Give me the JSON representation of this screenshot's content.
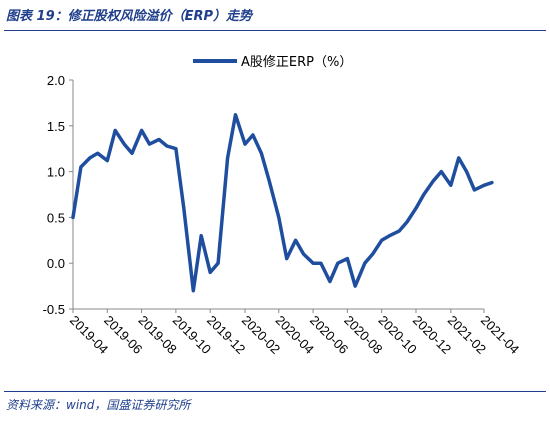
{
  "header": {
    "title": "图表 19：修正股权风险溢价（ERP）走势"
  },
  "footer": {
    "source": "资料来源：wind，国盛证券研究所"
  },
  "colors": {
    "accent": "#1f3f8c",
    "series": "#1f4e9e"
  },
  "chart_data": {
    "type": "line",
    "title": "",
    "xlabel": "",
    "ylabel": "",
    "ylim": [
      -0.5,
      2.0
    ],
    "y_ticks": [
      2.0,
      1.5,
      1.0,
      0.5,
      0.0,
      -0.5
    ],
    "y_tick_labels": [
      "2.0",
      "1.5",
      "1.0",
      "0.5",
      "0.0",
      "-0.5"
    ],
    "x_tick_labels": [
      "2019-04",
      "2019-06",
      "2019-08",
      "2019-10",
      "2019-12",
      "2020-02",
      "2020-04",
      "2020-06",
      "2020-08",
      "2020-10",
      "2020-12",
      "2021-02",
      "2021-04"
    ],
    "grid": false,
    "legend_position": "top",
    "series": [
      {
        "name": "A股修正ERP（%）",
        "color": "#1f4e9e",
        "x": [
          "2019-04-01",
          "2019-04-15",
          "2019-05-01",
          "2019-05-15",
          "2019-06-01",
          "2019-06-15",
          "2019-07-01",
          "2019-07-15",
          "2019-08-01",
          "2019-08-15",
          "2019-09-01",
          "2019-09-15",
          "2019-10-01",
          "2019-10-15",
          "2019-11-01",
          "2019-11-15",
          "2019-12-01",
          "2019-12-15",
          "2020-01-01",
          "2020-01-15",
          "2020-02-01",
          "2020-02-15",
          "2020-03-01",
          "2020-03-15",
          "2020-04-01",
          "2020-04-15",
          "2020-05-01",
          "2020-05-15",
          "2020-06-01",
          "2020-06-15",
          "2020-07-01",
          "2020-07-15",
          "2020-08-01",
          "2020-08-15",
          "2020-09-01",
          "2020-09-15",
          "2020-10-01",
          "2020-10-15",
          "2020-11-01",
          "2020-11-15",
          "2020-12-01",
          "2020-12-15",
          "2021-01-01",
          "2021-01-15",
          "2021-02-01",
          "2021-02-15",
          "2021-03-01",
          "2021-03-15",
          "2021-04-01",
          "2021-04-15"
        ],
        "values": [
          0.5,
          1.05,
          1.15,
          1.2,
          1.12,
          1.45,
          1.3,
          1.2,
          1.45,
          1.3,
          1.35,
          1.28,
          1.25,
          0.6,
          -0.3,
          0.3,
          -0.1,
          0.0,
          1.15,
          1.62,
          1.3,
          1.4,
          1.2,
          0.9,
          0.5,
          0.05,
          0.25,
          0.1,
          0.0,
          0.0,
          -0.2,
          0.0,
          0.05,
          -0.25,
          0.0,
          0.1,
          0.25,
          0.3,
          0.35,
          0.45,
          0.6,
          0.75,
          0.9,
          1.0,
          0.85,
          1.15,
          1.0,
          0.8,
          0.85,
          0.88
        ]
      }
    ]
  }
}
